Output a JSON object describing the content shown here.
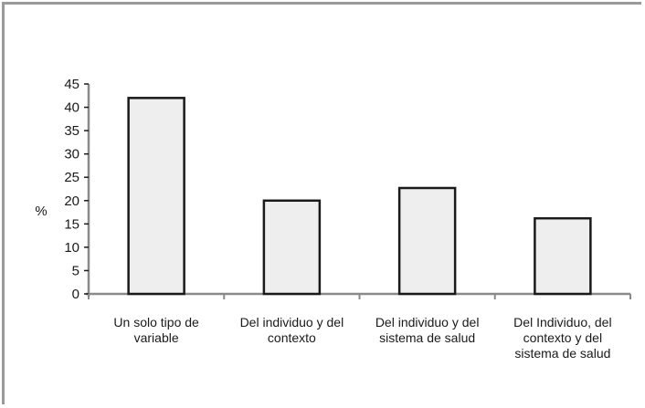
{
  "chart_data": {
    "type": "bar",
    "ylabel": "%",
    "ylim": [
      0,
      45
    ],
    "yticks": [
      0,
      5,
      10,
      15,
      20,
      25,
      30,
      35,
      40,
      45
    ],
    "categories": [
      [
        "Un solo tipo de",
        "variable"
      ],
      [
        "Del individuo y del",
        "contexto"
      ],
      [
        "Del individuo y del",
        "sistema de salud"
      ],
      [
        "Del Individuo, del",
        "contexto y del",
        "sistema de salud"
      ]
    ],
    "values": [
      42,
      20,
      22.7,
      16.2
    ],
    "colors": {
      "bar_fill": "#eeeeee",
      "bar_stroke": "#1a1a1a",
      "axis": "#8a8a8a"
    }
  }
}
